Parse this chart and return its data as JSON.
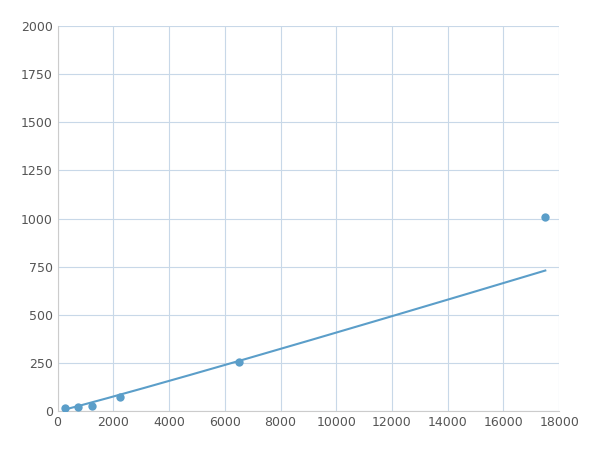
{
  "x": [
    250,
    750,
    1250,
    2250,
    6500,
    17500
  ],
  "y": [
    15,
    22,
    30,
    75,
    255,
    1010
  ],
  "line_color": "#5b9ec9",
  "marker_color": "#5b9ec9",
  "marker_size": 6,
  "line_width": 1.5,
  "xlim": [
    0,
    18000
  ],
  "ylim": [
    0,
    2000
  ],
  "xticks": [
    0,
    2000,
    4000,
    6000,
    8000,
    10000,
    12000,
    14000,
    16000,
    18000
  ],
  "yticks": [
    0,
    250,
    500,
    750,
    1000,
    1250,
    1500,
    1750,
    2000
  ],
  "grid_color": "#c8d8e8",
  "background_color": "#ffffff",
  "figure_bg": "#ffffff"
}
